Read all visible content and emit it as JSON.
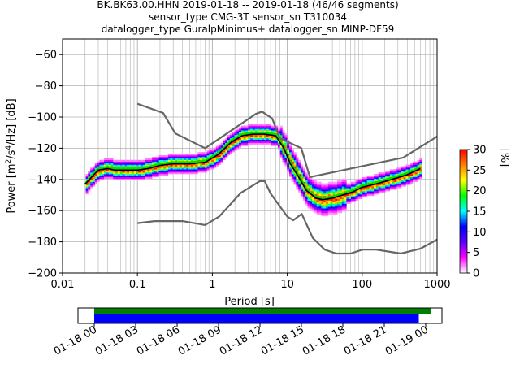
{
  "title_lines": [
    "BK.BK63.00.HHN   2019-01-18 -- 2019-01-18  (46/46 segments)",
    "sensor_type CMG-3T sensor_sn T310034",
    "datalogger_type GuralpMinimus+ datalogger_sn MINP-DF59"
  ],
  "chart_data": [
    {
      "type": "heatmap",
      "name": "ppsd",
      "xlabel": "Period [s]",
      "ylabel": "Power [m²/s⁴/Hz] [dB]",
      "ylabel_parts": {
        "pre": "Power [m",
        "sup1": "2",
        "mid": "/s",
        "sup2": "4",
        "post": "/Hz] [dB]"
      },
      "x_scale": "log",
      "xlim": [
        0.01,
        1000
      ],
      "ylim": [
        -200,
        -50
      ],
      "x_ticks": [
        0.01,
        0.1,
        1,
        10,
        100,
        1000
      ],
      "x_tick_labels": [
        "0.01",
        "0.1",
        "1",
        "10",
        "100",
        "1000"
      ],
      "y_ticks": [
        -200,
        -180,
        -160,
        -140,
        -120,
        -100,
        -80,
        -60
      ],
      "y_tick_labels": [
        "−200",
        "−180",
        "−160",
        "−140",
        "−120",
        "−100",
        "−80",
        "−60"
      ],
      "grid": true,
      "colorbar": {
        "label": "[%]",
        "range": [
          0,
          30
        ],
        "ticks": [
          0,
          5,
          10,
          15,
          20,
          25,
          30
        ],
        "tick_labels": [
          "0",
          "5",
          "10",
          "15",
          "20",
          "25",
          "30"
        ],
        "colors": [
          "#ffffff",
          "#ff00ff",
          "#5a00ff",
          "#0000ff",
          "#00ffff",
          "#00ff00",
          "#ffff00",
          "#ff8000",
          "#ff0000"
        ]
      },
      "mean_curve": {
        "period": [
          0.02,
          0.025,
          0.03,
          0.04,
          0.05,
          0.07,
          0.1,
          0.14,
          0.2,
          0.3,
          0.5,
          0.8,
          1.2,
          1.8,
          2.5,
          3.5,
          5,
          7,
          9,
          11,
          14,
          18,
          24,
          30,
          40,
          55,
          75,
          100,
          150,
          250,
          400,
          600
        ],
        "power": [
          -143,
          -138,
          -134,
          -133,
          -134,
          -134,
          -134,
          -133,
          -131,
          -130,
          -130,
          -129,
          -124,
          -116,
          -112,
          -111,
          -111,
          -112,
          -120,
          -130,
          -138,
          -147,
          -152,
          -153,
          -152,
          -150,
          -148,
          -145,
          -143,
          -140,
          -137,
          -133
        ],
        "color": "#000000"
      },
      "median_curve": {
        "period": [
          0.02,
          0.025,
          0.03,
          0.04,
          0.05,
          0.07,
          0.1,
          0.14,
          0.2,
          0.3,
          0.5,
          0.8,
          1.2,
          1.8,
          2.5,
          3.5,
          5,
          7,
          9,
          11,
          14,
          18,
          24,
          30,
          40,
          55,
          75,
          100,
          150,
          250,
          400,
          600
        ],
        "power": [
          -143,
          -137,
          -133,
          -132,
          -133,
          -133,
          -133,
          -132,
          -130,
          -129,
          -129,
          -128,
          -123,
          -115,
          -111,
          -110,
          -110,
          -111,
          -119,
          -129,
          -137,
          -146,
          -151,
          -152,
          -151,
          -149,
          -147,
          -144,
          -142,
          -139,
          -136,
          -132
        ],
        "color": "#00dd00"
      },
      "nhnm": {
        "period": [
          0.1,
          0.22,
          0.32,
          0.8,
          3.8,
          4.6,
          6.3,
          7.9,
          15.4,
          20,
          354.8,
          1000
        ],
        "power": [
          -91.5,
          -97.4,
          -110.5,
          -120,
          -98,
          -96.5,
          -101,
          -113.5,
          -120,
          -138.5,
          -126,
          -112.5
        ],
        "color": "#666666"
      },
      "nlnm": {
        "period": [
          0.1,
          0.17,
          0.4,
          0.8,
          1.24,
          2.4,
          4.3,
          5,
          6,
          10,
          12,
          15.6,
          21.9,
          31.6,
          45,
          70,
          101,
          154,
          328,
          600,
          1000
        ],
        "power": [
          -168,
          -166.7,
          -166.7,
          -169.2,
          -163.7,
          -148.6,
          -141.1,
          -141.1,
          -149,
          -163.8,
          -166.2,
          -162.1,
          -177.5,
          -185,
          -187.5,
          -187.5,
          -185,
          -185,
          -187.5,
          -184.4,
          -178.6
        ],
        "color": "#666666"
      }
    },
    {
      "type": "timeline",
      "name": "data-coverage",
      "time_range": [
        "2019-01-18 00:00",
        "2019-01-19 02:00"
      ],
      "x_tick_labels": [
        "01-18 00",
        "01-18 03",
        "01-18 06",
        "01-18 09",
        "01-18 12",
        "01-18 15",
        "01-18 18",
        "01-18 21",
        "01-19 00"
      ],
      "x_tick_hours": [
        0,
        3,
        6,
        9,
        12,
        15,
        18,
        21,
        24
      ],
      "bars": [
        {
          "name": "data",
          "start_hour": 0,
          "end_hour": 24.4,
          "color": "#008000"
        },
        {
          "name": "ppsd-segments",
          "start_hour": 0,
          "end_hour": 23.5,
          "color": "#0000ff"
        }
      ]
    }
  ]
}
